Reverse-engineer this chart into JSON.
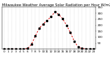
{
  "title": "Milwaukee Weather Average Solar Radiation per Hour W/m2 (Last 24 Hours)",
  "hours": [
    0,
    1,
    2,
    3,
    4,
    5,
    6,
    7,
    8,
    9,
    10,
    11,
    12,
    13,
    14,
    15,
    16,
    17,
    18,
    19,
    20,
    21,
    22,
    23
  ],
  "values": [
    0,
    0,
    0,
    0,
    0,
    2,
    5,
    40,
    110,
    175,
    210,
    240,
    270,
    310,
    290,
    255,
    200,
    140,
    65,
    20,
    5,
    2,
    0,
    0
  ],
  "line_color": "#dd0000",
  "marker_color": "#000000",
  "bg_color": "#ffffff",
  "grid_color": "#888888",
  "ylim": [
    0,
    350
  ],
  "ytick_values": [
    50,
    100,
    150,
    200,
    250,
    300,
    350
  ],
  "ytick_labels": [
    "50",
    "100",
    "150",
    "200",
    "250",
    "300",
    "350"
  ],
  "title_fontsize": 3.8,
  "tick_fontsize": 3.0,
  "line_width": 0.7,
  "marker_size": 1.5
}
